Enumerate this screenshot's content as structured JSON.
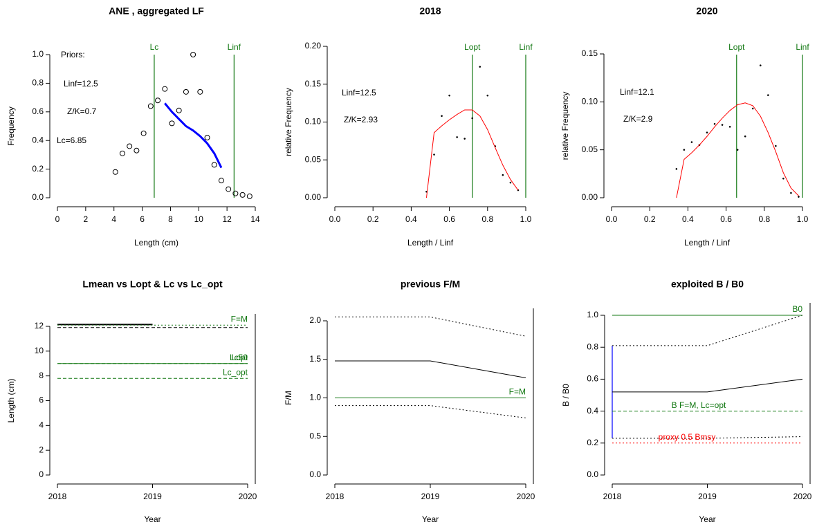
{
  "chart_data": [
    {
      "type": "scatter",
      "title": "ANE , aggregated LF",
      "x_label": "Length (cm)",
      "y_label": "Frequency",
      "xlim": [
        0,
        14
      ],
      "ylim": [
        0,
        1
      ],
      "xticks": [
        0,
        2,
        4,
        6,
        8,
        10,
        12,
        14
      ],
      "yticks": [
        {
          "value": 0,
          "label": "0.0"
        },
        0.2,
        0.4,
        0.6,
        0.8,
        {
          "value": 1,
          "label": "1.0"
        }
      ],
      "annotations": [
        "Priors:",
        "Linf=12.5",
        "Z/K=0.7",
        "Lc=6.85"
      ],
      "vlines": [
        {
          "label": "Lc",
          "value": 6.85,
          "color": "#117711"
        },
        {
          "label": "Linf",
          "value": 12.5,
          "color": "#117711"
        }
      ],
      "series": [
        {
          "style": "open-points",
          "color": "#000000",
          "x": [
            4.1,
            4.6,
            5.1,
            5.6,
            6.1,
            6.6,
            7.1,
            7.6,
            8.1,
            8.6,
            9.1,
            9.6,
            10.1,
            10.6,
            11.1,
            11.6,
            12.1,
            12.6,
            13.1,
            13.6
          ],
          "values": [
            0.18,
            0.31,
            0.36,
            0.33,
            0.45,
            0.64,
            0.68,
            0.76,
            0.52,
            0.61,
            0.74,
            1.0,
            0.74,
            0.42,
            0.23,
            0.12,
            0.06,
            0.03,
            0.02,
            0.01
          ]
        },
        {
          "style": "line",
          "dash": "solid",
          "width": 3,
          "color": "#0000ff",
          "x": [
            7.6,
            8.1,
            8.6,
            9.1,
            9.6,
            10.1,
            10.6,
            11.1,
            11.6
          ],
          "values": [
            0.66,
            0.6,
            0.55,
            0.5,
            0.47,
            0.43,
            0.38,
            0.31,
            0.21
          ]
        }
      ]
    },
    {
      "type": "scatter",
      "title": "2018",
      "x_label": "Length / Linf",
      "y_label": "relative Frequency",
      "xlim": [
        0,
        1
      ],
      "ylim": [
        0,
        0.2
      ],
      "xticks": [
        {
          "value": 0,
          "label": "0.0"
        },
        0.2,
        0.4,
        0.6,
        0.8,
        {
          "value": 1,
          "label": "1.0"
        }
      ],
      "yticks": [
        {
          "value": 0,
          "label": "0.00"
        },
        0.05,
        {
          "value": 0.1,
          "label": "0.10"
        },
        0.15,
        {
          "value": 0.2,
          "label": "0.20"
        }
      ],
      "annotations": [
        "Linf=12.5",
        "Z/K=2.93"
      ],
      "vlines": [
        {
          "label": "Lopt",
          "value": 0.72,
          "color": "#117711"
        },
        {
          "label": "Linf",
          "value": 1,
          "color": "#117711"
        }
      ],
      "series": [
        {
          "style": "points",
          "color": "#000000",
          "x": [
            0.48,
            0.52,
            0.56,
            0.6,
            0.64,
            0.68,
            0.72,
            0.76,
            0.8,
            0.84,
            0.88,
            0.92,
            0.96
          ],
          "values": [
            0.008,
            0.057,
            0.108,
            0.135,
            0.08,
            0.078,
            0.105,
            0.173,
            0.135,
            0.068,
            0.03,
            0.02,
            0.01
          ]
        },
        {
          "style": "line",
          "dash": "solid",
          "width": 1,
          "color": "#ff0000",
          "x": [
            0.48,
            0.52,
            0.56,
            0.6,
            0.64,
            0.68,
            0.72,
            0.76,
            0.8,
            0.84,
            0.88,
            0.92,
            0.96
          ],
          "values": [
            0,
            0.086,
            0.095,
            0.103,
            0.11,
            0.116,
            0.116,
            0.108,
            0.09,
            0.066,
            0.043,
            0.024,
            0.01
          ]
        }
      ]
    },
    {
      "type": "scatter",
      "title": "2020",
      "x_label": "Length / Linf",
      "y_label": "relative Frequency",
      "xlim": [
        0,
        1
      ],
      "ylim": [
        0,
        0.15
      ],
      "xticks": [
        {
          "value": 0,
          "label": "0.0"
        },
        0.2,
        0.4,
        0.6,
        0.8,
        {
          "value": 1,
          "label": "1.0"
        }
      ],
      "yticks": [
        {
          "value": 0,
          "label": "0.00"
        },
        0.05,
        {
          "value": 0.1,
          "label": "0.10"
        },
        0.15
      ],
      "annotations": [
        "Linf=12.1",
        "Z/K=2.9"
      ],
      "vlines": [
        {
          "label": "Lopt",
          "value": 0.655,
          "color": "#117711"
        },
        {
          "label": "Linf",
          "value": 1,
          "color": "#117711"
        }
      ],
      "series": [
        {
          "style": "points",
          "color": "#000000",
          "x": [
            0.34,
            0.38,
            0.42,
            0.46,
            0.5,
            0.54,
            0.58,
            0.62,
            0.66,
            0.7,
            0.74,
            0.78,
            0.82,
            0.86,
            0.9,
            0.94,
            0.98
          ],
          "values": [
            0.03,
            0.05,
            0.058,
            0.055,
            0.068,
            0.077,
            0.076,
            0.074,
            0.05,
            0.064,
            0.093,
            0.138,
            0.107,
            0.054,
            0.02,
            0.005,
            0.001
          ]
        },
        {
          "style": "line",
          "dash": "solid",
          "width": 1,
          "color": "#ff0000",
          "x": [
            0.34,
            0.38,
            0.42,
            0.46,
            0.5,
            0.54,
            0.58,
            0.62,
            0.66,
            0.7,
            0.74,
            0.78,
            0.82,
            0.86,
            0.9,
            0.94,
            0.98
          ],
          "values": [
            0,
            0.04,
            0.047,
            0.055,
            0.064,
            0.074,
            0.083,
            0.091,
            0.097,
            0.099,
            0.096,
            0.085,
            0.068,
            0.048,
            0.026,
            0.01,
            0.002
          ]
        }
      ]
    },
    {
      "type": "line",
      "title": "Lmean vs Lopt & Lc vs Lc_opt",
      "x_label": "Year",
      "y_label": "Length (cm)",
      "x": [
        2018,
        2019,
        2020
      ],
      "xlim": [
        2018,
        2020
      ],
      "ylim": [
        0,
        12
      ],
      "xticks": [
        2018,
        2019,
        2020
      ],
      "yticks": [
        0,
        2,
        4,
        6,
        8,
        10,
        12
      ],
      "series": [
        {
          "style": "line",
          "dash": "solid",
          "width": 2,
          "color": "#000000",
          "values": [
            12.15,
            12.15,
            null
          ]
        },
        {
          "style": "line",
          "dash": "dashed",
          "width": 1,
          "color": "#000000",
          "values": [
            11.9,
            11.9,
            11.9
          ]
        },
        {
          "name": "F=M",
          "style": "line",
          "dash": "dotted",
          "width": 1,
          "color": "#117711",
          "values": [
            12.1,
            12.1,
            12.1
          ]
        },
        {
          "name": "Lopt",
          "style": "line",
          "dash": "solid",
          "width": 1,
          "color": "#117711",
          "values": [
            9,
            9,
            9
          ]
        },
        {
          "name": "Lc50",
          "style": "line",
          "dash": "dashed",
          "width": 1,
          "color": "#117711",
          "values": [
            9,
            9,
            9
          ]
        },
        {
          "name": "Lc_opt",
          "style": "line",
          "dash": "dashed",
          "width": 1,
          "color": "#117711",
          "values": [
            7.8,
            7.8,
            7.8
          ]
        }
      ]
    },
    {
      "type": "line",
      "title": "previous F/M",
      "x_label": "Year",
      "y_label": "F/M",
      "x": [
        2018,
        2019,
        2020
      ],
      "xlim": [
        2018,
        2020
      ],
      "ylim": [
        0,
        2
      ],
      "xticks": [
        2018,
        2019,
        2020
      ],
      "yticks": [
        {
          "value": 0,
          "label": "0.0"
        },
        0.5,
        {
          "value": 1,
          "label": "1.0"
        },
        1.5,
        {
          "value": 2,
          "label": "2.0"
        }
      ],
      "series": [
        {
          "style": "line",
          "dash": "solid",
          "width": 1,
          "color": "#000000",
          "values": [
            1.48,
            1.48,
            1.26
          ]
        },
        {
          "style": "line",
          "dash": "dotted",
          "width": 1,
          "color": "#000000",
          "values": [
            2.05,
            2.05,
            1.8
          ]
        },
        {
          "style": "line",
          "dash": "dotted",
          "width": 1,
          "color": "#000000",
          "values": [
            0.9,
            0.9,
            0.74
          ]
        },
        {
          "name": "F=M",
          "style": "line",
          "dash": "solid",
          "width": 1,
          "color": "#117711",
          "values": [
            1,
            1,
            1
          ]
        }
      ]
    },
    {
      "type": "line",
      "title": "exploited B / B0",
      "x_label": "Year",
      "y_label": "B / B0",
      "x": [
        2018,
        2019,
        2020
      ],
      "xlim": [
        2018,
        2020
      ],
      "ylim": [
        0,
        1
      ],
      "xticks": [
        2018,
        2019,
        2020
      ],
      "yticks": [
        {
          "value": 0,
          "label": "0.0"
        },
        0.2,
        0.4,
        0.6,
        0.8,
        {
          "value": 1,
          "label": "1.0"
        }
      ],
      "intervals": [
        {
          "x": 2018,
          "low": 0.23,
          "high": 0.81,
          "color": "#0000ff"
        }
      ],
      "series": [
        {
          "style": "line",
          "dash": "solid",
          "width": 1,
          "color": "#000000",
          "values": [
            0.52,
            0.52,
            0.6
          ]
        },
        {
          "style": "line",
          "dash": "dotted",
          "width": 1,
          "color": "#000000",
          "values": [
            0.81,
            0.81,
            1.0
          ]
        },
        {
          "style": "line",
          "dash": "dotted",
          "width": 1,
          "color": "#000000",
          "values": [
            0.23,
            0.23,
            0.24
          ]
        },
        {
          "name": "B0",
          "style": "line",
          "dash": "solid",
          "width": 1,
          "color": "#117711",
          "values": [
            1,
            1,
            1
          ]
        },
        {
          "name": "B F=M, Lc=opt",
          "style": "line",
          "dash": "dashed",
          "width": 1,
          "color": "#117711",
          "values": [
            0.4,
            0.4,
            0.4
          ]
        },
        {
          "name": "proxy 0.5 Bmsy",
          "style": "line",
          "dash": "dotted",
          "width": 1,
          "color": "#ff0000",
          "values": [
            0.2,
            0.2,
            0.2
          ]
        }
      ]
    }
  ]
}
